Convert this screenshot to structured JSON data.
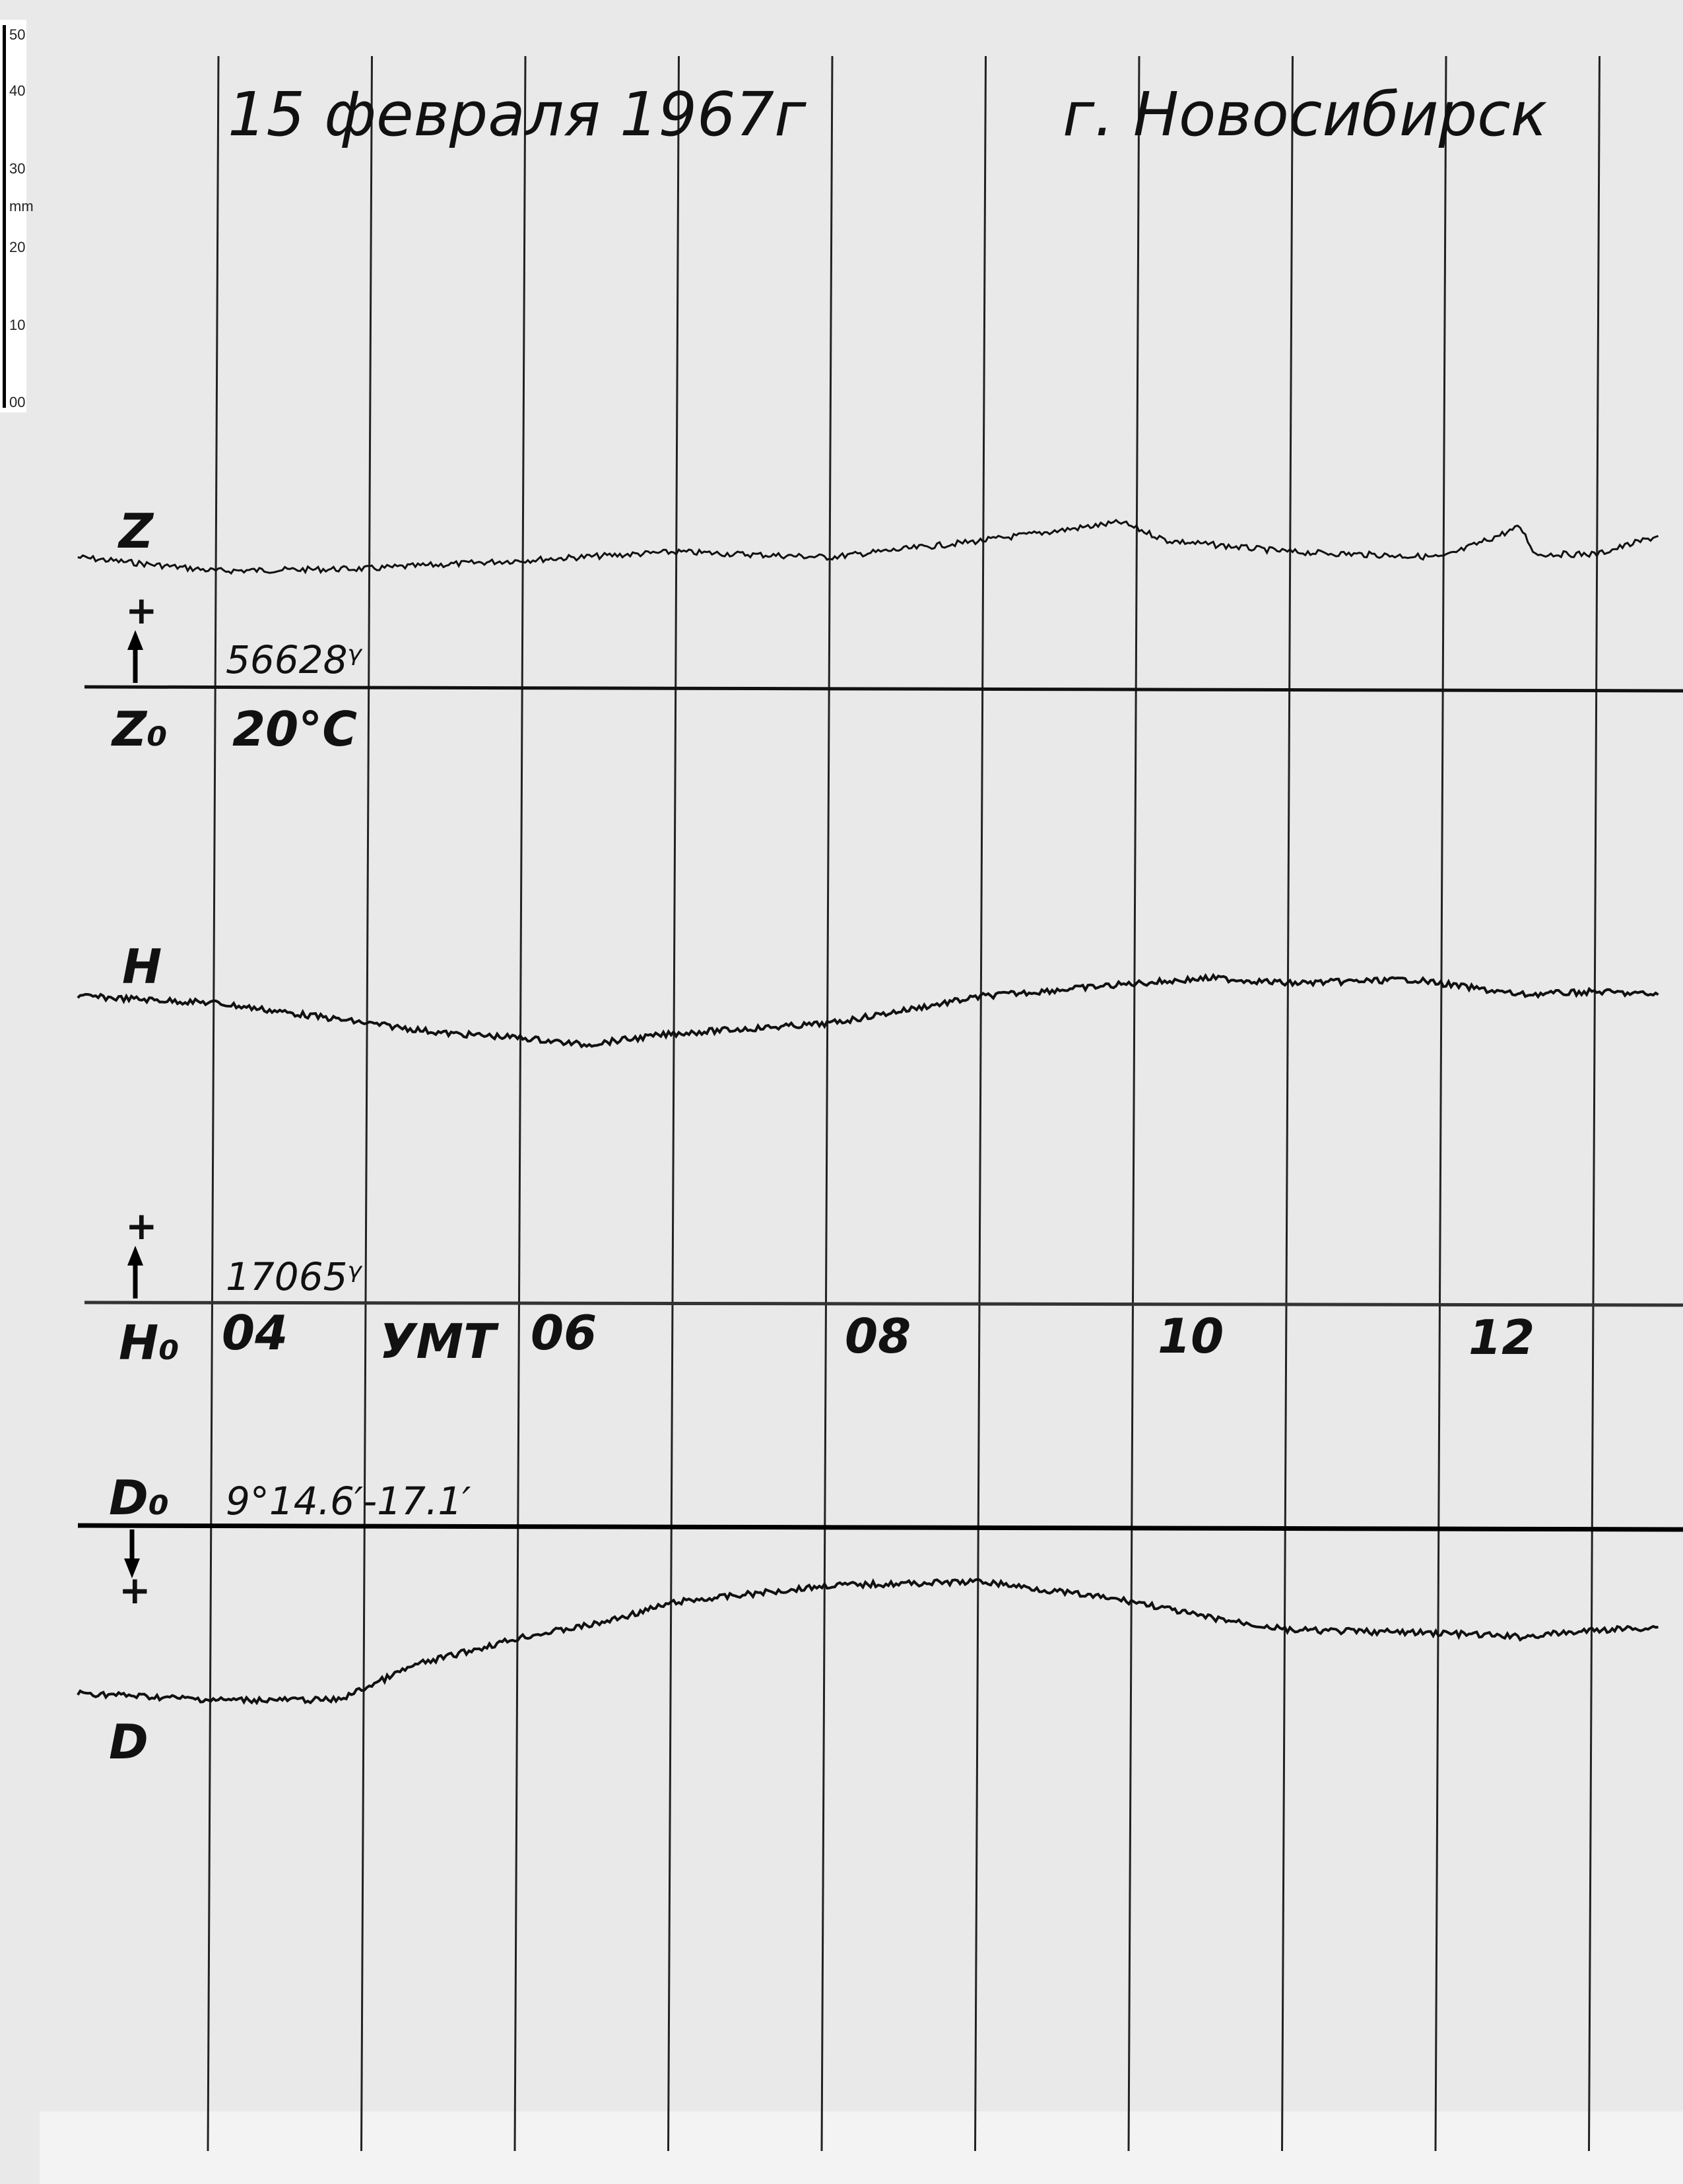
{
  "header": {
    "date": "15 февраля 1967г",
    "station": "г. Новосибирск"
  },
  "ruler": {
    "unit": "mm",
    "ticks": [
      "50",
      "40",
      "30",
      "20",
      "10",
      "00"
    ]
  },
  "labels": {
    "z": "Z",
    "z0": "Z₀",
    "z0_value": "56628ᵞ",
    "temperature": "20°C",
    "h": "H",
    "h0": "H₀",
    "h0_value": "17065ᵞ",
    "time_label": "УМТ",
    "d": "D",
    "d0": "D₀",
    "d0_value": "9°14.6′-17.1′",
    "plus": "+"
  },
  "chart_data": {
    "type": "line",
    "title": "15 февраля 1967г  г. Новосибирск",
    "xlabel": "УМТ",
    "x_tick_labels": [
      "04",
      "06",
      "08",
      "10",
      "12"
    ],
    "xlim": [
      3.1,
      13.4
    ],
    "grid": "vertical hourly lines",
    "colors": {
      "trace": "#111111",
      "paper": "#e9e9e9"
    },
    "series": [
      {
        "name": "Z",
        "baseline": "Z₀ = 56628ᵞ",
        "direction": "+ up",
        "x": [
          3.1,
          4,
          5,
          6,
          7,
          8,
          9,
          9.9,
          10.2,
          11,
          12,
          12.5,
          12.6,
          13,
          13.4
        ],
        "values": [
          17.1,
          15.3,
          15.6,
          16.7,
          17.8,
          17.1,
          19.3,
          21.7,
          19.3,
          17.8,
          17.1,
          21.1,
          17.5,
          17.5,
          19.9
        ]
      },
      {
        "name": "H",
        "baseline": "H₀ = 17065ᵞ",
        "direction": "+ up",
        "x": [
          3.1,
          4,
          5,
          5.5,
          6,
          6.4,
          7,
          8,
          9,
          10,
          10.5,
          11,
          11.8,
          12.5,
          13,
          13.4
        ],
        "values": [
          40.4,
          39.5,
          36.8,
          35.5,
          34.9,
          34.0,
          35.5,
          36.8,
          40.4,
          42.1,
          42.8,
          42.1,
          42.6,
          40.6,
          41.0,
          40.6
        ]
      },
      {
        "name": "D",
        "baseline": "D₀ = 9°14.6′-17.1′",
        "direction": "+ down",
        "x": [
          3.1,
          4,
          4.8,
          5.3,
          6,
          6.5,
          7,
          8,
          9,
          10,
          10.4,
          11,
          12,
          12.5,
          13,
          13.4
        ],
        "values": [
          22.1,
          23.0,
          23.0,
          18.4,
          14.7,
          12.9,
          10.1,
          7.9,
          7.4,
          10.1,
          11.9,
          13.8,
          14.2,
          14.7,
          13.8,
          13.4
        ]
      }
    ],
    "units": "mm deflection from baseline"
  }
}
